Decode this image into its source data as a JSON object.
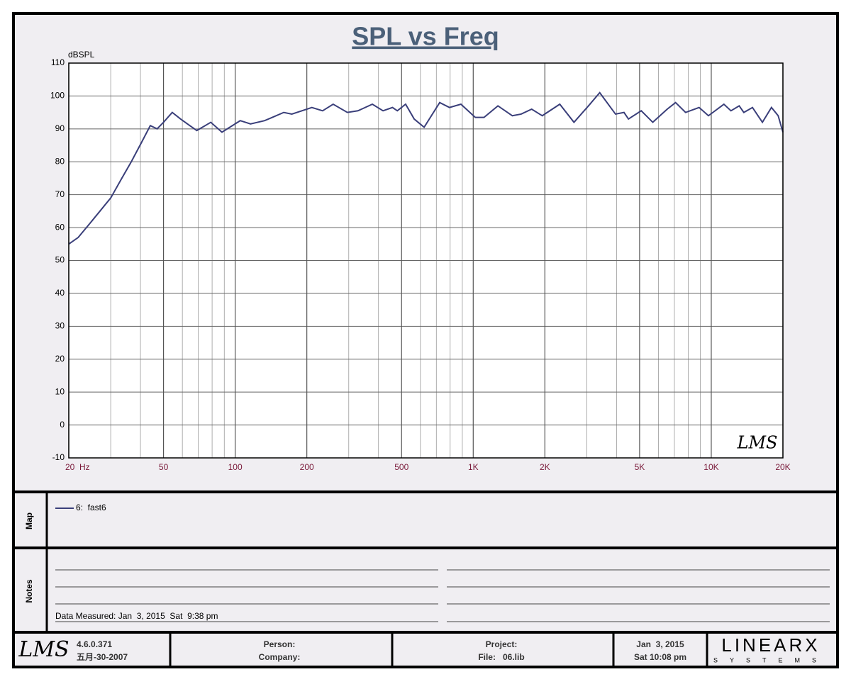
{
  "chart_data": {
    "type": "line",
    "title": "SPL vs Freq",
    "y_label": "dBSPL",
    "log_x": true,
    "grid": true,
    "xlim": [
      20,
      20000
    ],
    "ylim": [
      -10,
      110
    ],
    "xticks": [
      {
        "value": 20,
        "label": "20  Hz"
      },
      50,
      100,
      200,
      500,
      {
        "value": 1000,
        "label": "1K"
      },
      {
        "value": 2000,
        "label": "2K"
      },
      {
        "value": 5000,
        "label": "5K"
      },
      {
        "value": 10000,
        "label": "10K"
      },
      {
        "value": 20000,
        "label": "20K"
      }
    ],
    "xminor": [
      30,
      40,
      60,
      70,
      80,
      90,
      300,
      400,
      600,
      700,
      800,
      900,
      3000,
      4000,
      6000,
      7000,
      8000,
      9000
    ],
    "yticks": [
      -10,
      0,
      10,
      20,
      30,
      40,
      50,
      60,
      70,
      80,
      90,
      100,
      110
    ],
    "x": [
      20,
      21.9,
      25,
      30,
      33.4,
      36.6,
      40.5,
      44,
      47,
      50,
      54.4,
      59,
      63,
      69,
      79,
      88,
      105,
      116,
      133,
      160,
      173,
      210,
      233,
      258,
      296,
      328,
      377,
      418,
      458,
      480,
      520,
      565,
      622,
      723,
      795,
      888,
      1020,
      1110,
      1270,
      1460,
      1590,
      1760,
      1950,
      2310,
      2650,
      3050,
      3400,
      3960,
      4300,
      4490,
      5080,
      5680,
      6530,
      7080,
      7800,
      8890,
      9730,
      11300,
      12100,
      13100,
      13700,
      14900,
      16400,
      17900,
      19100,
      20000
    ],
    "series": [
      {
        "name": "6:  fast6",
        "color": "#3a3f7a",
        "values": [
          55,
          57,
          62,
          69,
          75,
          80,
          86,
          91,
          90,
          92,
          95,
          93,
          91.5,
          89.5,
          92,
          89,
          92.5,
          91.5,
          92.5,
          95,
          94.5,
          96.5,
          95.5,
          97.5,
          95,
          95.5,
          97.5,
          95.5,
          96.5,
          95.5,
          97.5,
          93,
          90.5,
          98,
          96.5,
          97.5,
          93.5,
          93.5,
          97,
          94,
          94.5,
          96,
          94,
          97.5,
          92,
          97,
          101,
          94.5,
          95,
          93,
          95.5,
          92,
          96,
          98,
          95,
          96.5,
          94,
          97.5,
          95.5,
          97,
          95,
          96.5,
          92,
          96.5,
          94,
          89
        ]
      }
    ],
    "plot_logo": "LMS"
  },
  "map_label": "Map",
  "notes_label": "Notes",
  "notes_text": "Data Measured: Jan  3, 2015  Sat  9:38 pm",
  "footer": {
    "logo": "LMS",
    "version": "4.6.0.371",
    "build_date": "五月-30-2007",
    "person": "Person:",
    "company": "Company:",
    "project": "Project:",
    "file": "File:   06.lib",
    "date": "Jan  3, 2015",
    "time": "Sat 10:08 pm",
    "brand": "LINEARX",
    "brand_sub": "SYSTEMS"
  }
}
